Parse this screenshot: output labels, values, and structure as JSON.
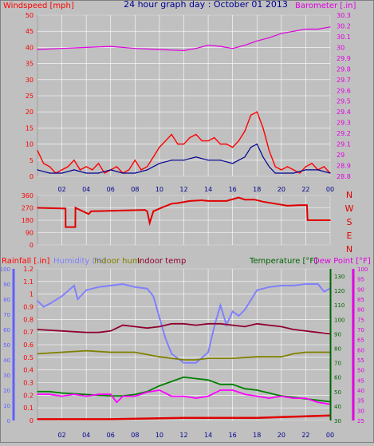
{
  "title": "24 hour graph day : October 01 2013",
  "colors": {
    "wind": "#ff0000",
    "gust": "#000090",
    "barometer": "#e000e0",
    "direction": "#e00000",
    "rainfall": "#e00000",
    "humidity": "#8080ff",
    "indoor_hum": "#808000",
    "indoor_temp": "#900030",
    "temperature": "#008000",
    "dew_point": "#ff00ff",
    "yellow": "#ffff00",
    "axis_red": "#ff0000",
    "axis_blue": "#6060ff",
    "axis_green": "#006400",
    "axis_magenta": "#e000e0",
    "axis_dark": "#000090",
    "grid": "#ffffff",
    "panel": "#c0c0c0"
  },
  "chart_data": [
    {
      "type": "line",
      "id": "wind",
      "left_axis": {
        "label": "Windspeed [mph]",
        "ylim": [
          0,
          50
        ],
        "ticks": [
          "0",
          "5",
          "10",
          "15",
          "20",
          "25",
          "30",
          "35",
          "40",
          "45",
          "50"
        ]
      },
      "right_axis": {
        "label": "Barometer [.in]",
        "ylim": [
          28.8,
          30.3
        ],
        "ticks": [
          "28.8",
          "28.9",
          "29",
          "29.1",
          "29.2",
          "29.3",
          "29.4",
          "29.5",
          "29.6",
          "29.7",
          "29.8",
          "29.9",
          "30",
          "30.1",
          "30.2",
          "30.3"
        ]
      },
      "x_ticks": [
        "02",
        "04",
        "06",
        "08",
        "10",
        "12",
        "14",
        "16",
        "18",
        "20",
        "22",
        "00"
      ],
      "series": [
        {
          "key": "barometer",
          "axis": "right",
          "x": [
            0,
            2,
            4,
            6,
            8,
            10,
            12,
            13,
            14,
            15,
            16,
            17,
            18,
            19,
            20,
            21,
            22,
            23,
            24
          ],
          "values": [
            29.98,
            29.99,
            30.0,
            30.01,
            29.99,
            29.98,
            29.97,
            29.99,
            30.02,
            30.01,
            29.99,
            30.02,
            30.06,
            30.09,
            30.13,
            30.15,
            30.17,
            30.17,
            30.19
          ]
        },
        {
          "key": "wind",
          "axis": "left",
          "x": [
            0,
            0.5,
            1,
            1.5,
            2,
            2.5,
            3,
            3.5,
            4,
            4.5,
            5,
            5.5,
            6,
            6.5,
            7,
            7.5,
            8,
            8.5,
            9,
            9.5,
            10,
            10.5,
            11,
            11.5,
            12,
            12.5,
            13,
            13.5,
            14,
            14.5,
            15,
            15.5,
            16,
            16.5,
            17,
            17.5,
            18,
            18.5,
            19,
            19.5,
            20,
            20.5,
            21,
            21.5,
            22,
            22.5,
            23,
            23.5,
            24
          ],
          "values": [
            8,
            4,
            3,
            1,
            2,
            3,
            5,
            2,
            3,
            2,
            4,
            1,
            2,
            3,
            1,
            2,
            5,
            2,
            3,
            6,
            9,
            11,
            13,
            10,
            10,
            12,
            13,
            11,
            11,
            12,
            10,
            10,
            9,
            11,
            14,
            19,
            20,
            15,
            8,
            3,
            2,
            3,
            2,
            1,
            3,
            4,
            2,
            3,
            1
          ]
        },
        {
          "key": "gust",
          "axis": "left",
          "x": [
            0,
            1,
            2,
            3,
            4,
            5,
            6,
            7,
            8,
            9,
            10,
            11,
            12,
            13,
            14,
            15,
            16,
            17,
            17.5,
            18,
            18.5,
            19,
            19.5,
            20,
            21,
            22,
            23,
            24
          ],
          "values": [
            2,
            1,
            1,
            2,
            1,
            1,
            2,
            1,
            1,
            2,
            4,
            5,
            5,
            6,
            5,
            5,
            4,
            6,
            9,
            10,
            6,
            3,
            1,
            1,
            1,
            2,
            2,
            1
          ]
        }
      ]
    },
    {
      "type": "line",
      "id": "direction",
      "left_axis": {
        "ylim": [
          0,
          360
        ],
        "ticks": [
          "0",
          "90",
          "180",
          "270",
          "360"
        ]
      },
      "right_labels": [
        "N",
        "W",
        "S",
        "E",
        "N"
      ],
      "series": [
        {
          "key": "direction",
          "x": [
            0,
            2.3,
            2.31,
            3.1,
            3.11,
            4.2,
            4.4,
            8.8,
            9.0,
            9.2,
            9.5,
            10.3,
            11.0,
            11.5,
            12.5,
            13.5,
            14,
            15.5,
            16.5,
            17,
            17.8,
            18.5,
            19.5,
            20.5,
            21.5,
            22.1,
            22.15,
            24
          ],
          "values": [
            270,
            265,
            130,
            130,
            270,
            225,
            245,
            255,
            245,
            160,
            245,
            275,
            300,
            305,
            320,
            325,
            320,
            320,
            345,
            330,
            330,
            315,
            300,
            285,
            290,
            290,
            180,
            180
          ]
        }
      ]
    },
    {
      "type": "line",
      "id": "combined",
      "left_axes": [
        {
          "label": "Rainfall [.in]",
          "ylim": [
            0,
            1.2
          ],
          "ticks": [
            "0",
            "0.1",
            "0.2",
            "0.3",
            "0.4",
            "0.5",
            "0.6",
            "0.7",
            "0.8",
            "0.9",
            "1",
            "1.1",
            "1.2"
          ]
        },
        {
          "ylim": [
            0,
            100
          ],
          "ticks": [
            "0",
            "10",
            "20",
            "30",
            "40",
            "50",
            "60",
            "70",
            "80",
            "90",
            "100"
          ]
        }
      ],
      "right_axes": [
        {
          "label": "Temperature [°F]",
          "ylim": [
            30,
            135
          ],
          "ticks": [
            "30",
            "40",
            "50",
            "60",
            "70",
            "80",
            "90",
            "100",
            "110",
            "120",
            "130"
          ]
        },
        {
          "label": "Dew Point [°F]",
          "ylim": [
            25,
            100
          ],
          "ticks": [
            "25",
            "30",
            "35",
            "40",
            "45",
            "50",
            "55",
            "60",
            "65",
            "70",
            "75",
            "80",
            "85",
            "90",
            "95",
            "100"
          ]
        }
      ],
      "legend_extra": [
        "Humidity (%)",
        "Indoor hum",
        "Indoor temp"
      ],
      "x_ticks": [
        "02",
        "04",
        "06",
        "08",
        "10",
        "12",
        "14",
        "16",
        "18",
        "20",
        "22",
        "00"
      ],
      "series": [
        {
          "key": "humidity",
          "axis": "pct",
          "x": [
            0,
            0.5,
            1,
            2,
            3,
            3.3,
            4,
            5,
            6,
            7,
            8,
            9,
            9.5,
            10,
            10.5,
            11,
            12,
            13,
            14,
            14.5,
            15,
            15.5,
            16,
            16.5,
            17,
            18,
            19,
            20,
            21,
            22,
            23,
            23.5,
            24
          ],
          "values": [
            79,
            75,
            77,
            82,
            89,
            80,
            86,
            88,
            89,
            90,
            88,
            87,
            82,
            68,
            54,
            44,
            38,
            38,
            45,
            62,
            76,
            63,
            72,
            69,
            73,
            86,
            88,
            89,
            89,
            90,
            90,
            85,
            87
          ]
        },
        {
          "key": "indoor_temp",
          "axis": "temp",
          "x": [
            0,
            2,
            4,
            5,
            6,
            7,
            8,
            9,
            10,
            11,
            12,
            13,
            14,
            15,
            16,
            17,
            18,
            19,
            20,
            21,
            22,
            23,
            24
          ],
          "values": [
            93,
            92,
            91,
            91,
            92,
            96,
            95,
            94,
            95,
            97,
            97,
            96,
            97,
            97,
            96,
            95,
            97,
            96,
            95,
            93,
            92,
            91,
            90
          ]
        },
        {
          "key": "indoor_hum",
          "axis": "pct",
          "x": [
            0,
            2,
            4,
            6,
            8,
            10,
            12,
            13,
            14,
            16,
            18,
            20,
            21,
            22,
            23,
            24
          ],
          "values": [
            44,
            45,
            46,
            45,
            45,
            42,
            40,
            40,
            41,
            41,
            42,
            42,
            44,
            45,
            45,
            45
          ]
        },
        {
          "key": "temperature",
          "axis": "temp",
          "x": [
            0,
            1,
            2,
            4,
            6,
            7,
            8,
            9,
            10,
            11,
            12,
            13,
            14,
            15,
            16,
            17,
            18,
            19,
            20,
            21,
            22,
            23,
            24
          ],
          "values": [
            50,
            50,
            49,
            48,
            47,
            47,
            48,
            50,
            54,
            57,
            60,
            59,
            58,
            55,
            55,
            52,
            51,
            49,
            47,
            46,
            45,
            44,
            43
          ]
        },
        {
          "key": "dew_point",
          "axis": "dew",
          "x": [
            0,
            1,
            2,
            3,
            4,
            5,
            6,
            6.5,
            7,
            8,
            9,
            10,
            11,
            12,
            13,
            14,
            15,
            16,
            17,
            18,
            19,
            20,
            21,
            22,
            23,
            24
          ],
          "values": [
            38,
            38,
            37,
            38,
            37,
            38,
            38,
            34,
            37,
            37,
            39,
            40,
            37,
            37,
            36,
            37,
            40,
            40,
            38,
            37,
            36,
            37,
            36,
            36,
            34,
            33
          ]
        },
        {
          "key": "rainfall",
          "axis": "rain",
          "x": [
            0,
            6,
            12,
            18,
            21,
            24
          ],
          "values": [
            0.01,
            0.01,
            0.02,
            0.02,
            0.03,
            0.04
          ]
        }
      ]
    }
  ]
}
